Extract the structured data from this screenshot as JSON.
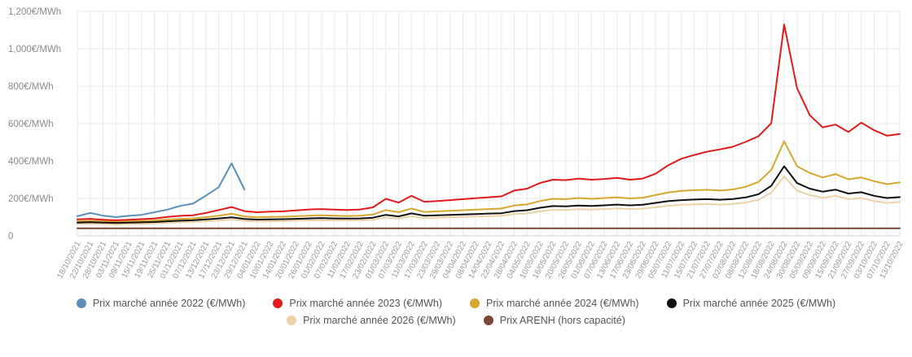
{
  "chart_data": {
    "type": "line",
    "title": "",
    "unit": "€/MWh",
    "grid": true,
    "legend_position": "bottom",
    "colors": {
      "axis_label": "#8a8a8a",
      "tick_label": "#999999",
      "grid_line": "#e9e9e9",
      "zero_line": "#cccccc",
      "legend_text": "#555555"
    },
    "y_axis": {
      "min": 0,
      "max": 1200,
      "ticks": [
        {
          "value": 1200,
          "label": "1,200€/MWh"
        },
        {
          "value": 1000,
          "label": "1,000€/MWh"
        },
        {
          "value": 800,
          "label": "800€/MWh"
        },
        {
          "value": 600,
          "label": "600€/MWh"
        },
        {
          "value": 400,
          "label": "400€/MWh"
        },
        {
          "value": 200,
          "label": "200€/MWh"
        },
        {
          "value": 0,
          "label": "0"
        }
      ]
    },
    "categories": [
      "18/10/2021",
      "22/10/2021",
      "28/10/2021",
      "03/11/2021",
      "09/11/2021",
      "15/11/2021",
      "19/11/2021",
      "25/11/2021",
      "01/12/2021",
      "07/12/2021",
      "13/12/2021",
      "17/12/2021",
      "23/12/2021",
      "29/12/2021",
      "04/01/2022",
      "10/01/2022",
      "14/01/2022",
      "20/01/2022",
      "26/01/2022",
      "01/02/2022",
      "07/02/2022",
      "11/02/2022",
      "17/02/2022",
      "23/02/2022",
      "01/03/2022",
      "07/03/2022",
      "11/03/2022",
      "17/03/2022",
      "23/03/2022",
      "29/03/2022",
      "04/04/2022",
      "08/04/2022",
      "14/04/2022",
      "22/04/2022",
      "28/04/2022",
      "04/05/2022",
      "10/05/2022",
      "16/05/2022",
      "20/05/2022",
      "26/05/2022",
      "01/06/2022",
      "07/06/2022",
      "13/06/2022",
      "17/06/2022",
      "23/06/2022",
      "29/06/2022",
      "05/07/2022",
      "11/07/2022",
      "15/07/2022",
      "21/07/2022",
      "27/07/2022",
      "02/08/2022",
      "08/08/2022",
      "12/08/2022",
      "18/08/2022",
      "24/08/2022",
      "30/08/2022",
      "05/09/2022",
      "09/09/2022",
      "15/09/2022",
      "21/09/2022",
      "27/09/2022",
      "03/10/2022",
      "07/10/2022",
      "13/10/2022"
    ],
    "series": [
      {
        "name": "Prix marché année 2022 (€/MWh)",
        "color": "#5b8fb9",
        "values": [
          105,
          122,
          108,
          100,
          107,
          112,
          126,
          140,
          160,
          172,
          215,
          260,
          388,
          248
        ]
      },
      {
        "name": "Prix marché année 2023 (€/MWh)",
        "color": "#e11b1b",
        "values": [
          88,
          91,
          86,
          83,
          86,
          89,
          93,
          101,
          107,
          110,
          122,
          138,
          154,
          132,
          126,
          129,
          131,
          136,
          141,
          143,
          140,
          138,
          141,
          152,
          198,
          178,
          214,
          182,
          186,
          191,
          196,
          201,
          206,
          211,
          242,
          252,
          282,
          300,
          298,
          306,
          300,
          304,
          310,
          300,
          306,
          332,
          378,
          412,
          432,
          450,
          462,
          476,
          502,
          532,
          602,
          1130,
          790,
          645,
          580,
          595,
          555,
          605,
          565,
          535,
          545
        ]
      },
      {
        "name": "Prix marché année 2024 (€/MWh)",
        "color": "#d6a72e",
        "values": [
          78,
          80,
          77,
          75,
          77,
          79,
          82,
          87,
          91,
          93,
          100,
          108,
          118,
          104,
          99,
          101,
          102,
          105,
          108,
          110,
          108,
          106,
          108,
          114,
          138,
          126,
          146,
          128,
          131,
          134,
          137,
          140,
          143,
          146,
          162,
          168,
          186,
          198,
          196,
          202,
          198,
          202,
          206,
          200,
          204,
          218,
          232,
          240,
          244,
          246,
          242,
          248,
          262,
          288,
          352,
          505,
          372,
          336,
          312,
          330,
          302,
          312,
          292,
          276,
          286
        ]
      },
      {
        "name": "Prix marché année 2025 (€/MWh)",
        "color": "#111111",
        "values": [
          71,
          73,
          71,
          69,
          71,
          72,
          74,
          78,
          81,
          83,
          88,
          93,
          99,
          90,
          87,
          88,
          89,
          91,
          93,
          95,
          93,
          92,
          93,
          97,
          112,
          104,
          120,
          108,
          110,
          112,
          114,
          116,
          119,
          121,
          132,
          137,
          150,
          159,
          158,
          162,
          160,
          163,
          167,
          163,
          166,
          176,
          186,
          191,
          194,
          196,
          193,
          197,
          205,
          222,
          268,
          372,
          282,
          252,
          236,
          247,
          226,
          233,
          214,
          202,
          207
        ]
      },
      {
        "name": "Prix marché année 2026 (€/MWh)",
        "color": "#ecd2a8",
        "values": [
          63,
          65,
          63,
          61,
          63,
          64,
          66,
          69,
          72,
          74,
          78,
          82,
          87,
          80,
          77,
          78,
          79,
          81,
          83,
          84,
          83,
          82,
          83,
          86,
          98,
          92,
          105,
          95,
          97,
          99,
          101,
          103,
          105,
          107,
          116,
          120,
          131,
          139,
          138,
          142,
          140,
          143,
          146,
          143,
          145,
          153,
          161,
          166,
          168,
          170,
          167,
          171,
          178,
          192,
          230,
          318,
          242,
          218,
          204,
          214,
          196,
          202,
          186,
          176,
          181
        ]
      },
      {
        "name": "Prix ARENH (hors capacité)",
        "color": "#7a4636",
        "constant": 40
      }
    ],
    "legend_rows": [
      [
        0,
        1,
        2,
        3
      ],
      [
        4,
        5
      ]
    ]
  }
}
